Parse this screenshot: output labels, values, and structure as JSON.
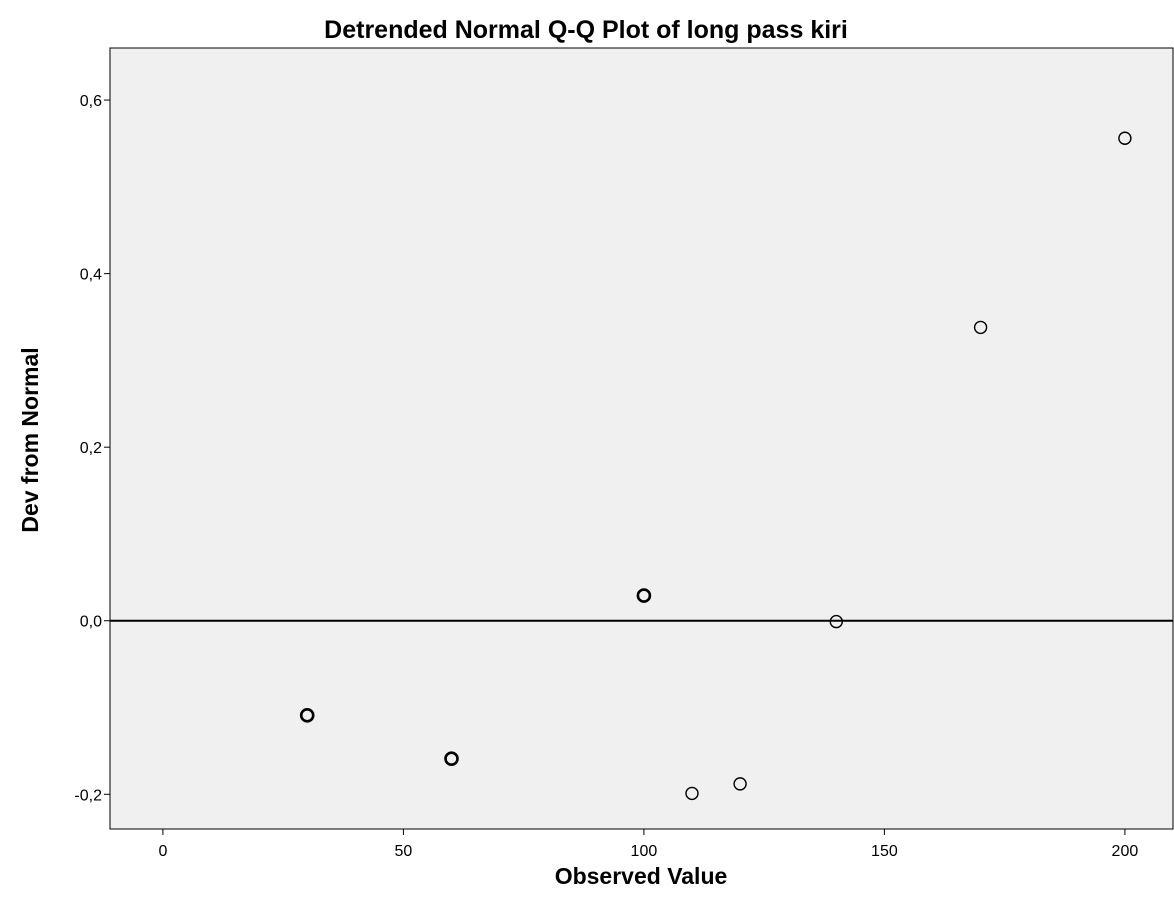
{
  "chart_data": {
    "type": "scatter",
    "title": "Detrended Normal Q-Q Plot of long pass kiri",
    "xlabel": "Observed Value",
    "ylabel": "Dev from Normal",
    "xlim": [
      -11,
      210
    ],
    "ylim": [
      -0.24,
      0.66
    ],
    "x_ticks": [
      0,
      50,
      100,
      150,
      200
    ],
    "x_tick_labels": [
      "0",
      "50",
      "100",
      "150",
      "200"
    ],
    "y_ticks": [
      -0.2,
      0.0,
      0.2,
      0.4,
      0.6
    ],
    "y_tick_labels": [
      "-0,2",
      "0,0",
      "0,2",
      "0,4",
      "0,6"
    ],
    "reference_line_y": 0.0,
    "grid": false,
    "points": [
      {
        "x": 30,
        "y": -0.109,
        "repeated": true
      },
      {
        "x": 60,
        "y": -0.159,
        "repeated": true
      },
      {
        "x": 100,
        "y": 0.029,
        "repeated": true
      },
      {
        "x": 110,
        "y": -0.199,
        "repeated": false
      },
      {
        "x": 120,
        "y": -0.188,
        "repeated": false
      },
      {
        "x": 140,
        "y": -0.001,
        "repeated": false
      },
      {
        "x": 170,
        "y": 0.338,
        "repeated": false
      },
      {
        "x": 200,
        "y": 0.556,
        "repeated": false
      }
    ]
  },
  "colors": {
    "plot_background": "#f0f0f0",
    "marker_stroke": "#000000",
    "reference_line": "#000000"
  }
}
